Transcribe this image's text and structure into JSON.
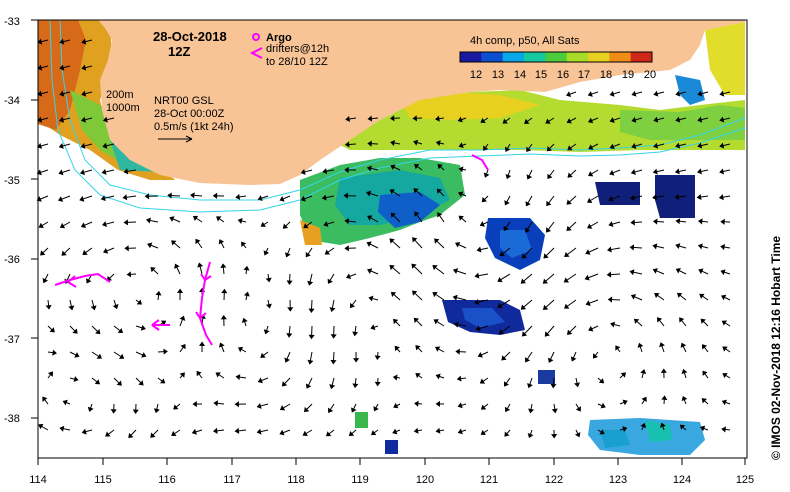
{
  "header": {
    "date": "28-Oct-2018",
    "time": "12Z"
  },
  "argo": {
    "label": "Argo",
    "drifters_line1": "drifters@12h",
    "drifters_line2": "to 28/10 12Z"
  },
  "legend": {
    "title": "4h comp, p50, All Sats",
    "ticks": [
      "12",
      "13",
      "14",
      "15",
      "16",
      "17",
      "18",
      "19",
      "20"
    ],
    "colors": [
      "#1a1aa0",
      "#0d4fd0",
      "#0aa6e6",
      "#14c8a0",
      "#4ccc3c",
      "#a8dc28",
      "#e8d020",
      "#f08c18",
      "#d02818"
    ]
  },
  "bathy": {
    "line1": "200m",
    "line2": "1000m"
  },
  "product": {
    "line1": "NRT00 GSL",
    "line2": "28-Oct 00:00Z",
    "line3": "0.5m/s (1kt 24h)"
  },
  "credit": "©  IMOS 02-Nov-2018 12:16 Hobart Time",
  "axes": {
    "y_labels": [
      "-33",
      "-34",
      "-35",
      "-36",
      "-37",
      "-38"
    ],
    "x_labels": [
      "114",
      "115",
      "116",
      "117",
      "118",
      "119",
      "120",
      "121",
      "122",
      "123",
      "124",
      "125"
    ]
  },
  "colors": {
    "land": "#f8c496",
    "coast_contour": "#35d4e8",
    "drifter": "#ff00ff",
    "argo": "#ff00ff"
  }
}
